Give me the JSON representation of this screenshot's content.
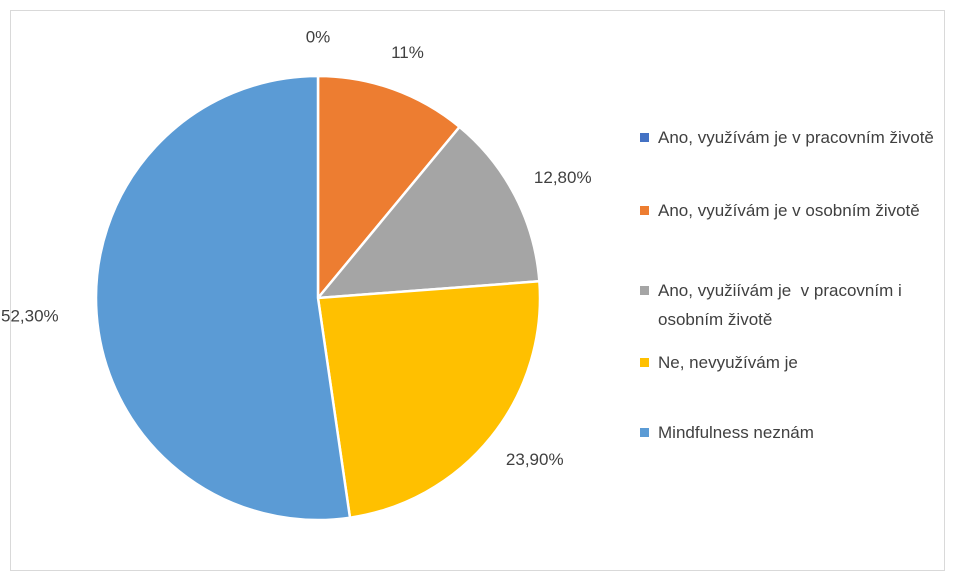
{
  "chart_data": {
    "type": "pie",
    "categories": [
      "Ano, využívám je v pracovním životě",
      "Ano, využívám je v osobním životě",
      "Ano, využiívám je  v pracovním i osobním životě",
      "Ne, nevyužívám je",
      "Mindfulness neznám"
    ],
    "values": [
      0,
      11,
      12.8,
      23.9,
      52.3
    ],
    "value_labels": [
      "0%",
      "11%",
      "12,80%",
      "23,90%",
      "52,30%"
    ],
    "colors": [
      "#4472c4",
      "#ed7d31",
      "#a5a5a5",
      "#ffc000",
      "#5b9bd5"
    ],
    "legend": "right"
  }
}
